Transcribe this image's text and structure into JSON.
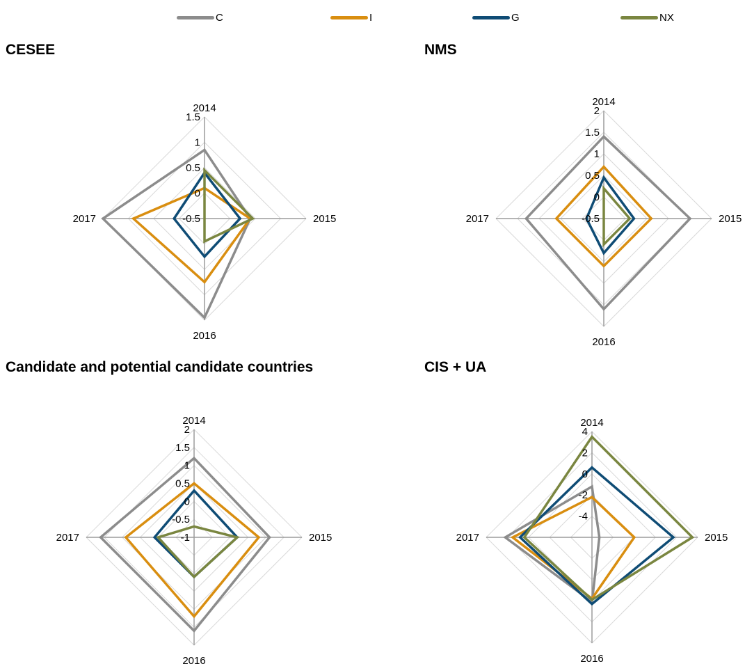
{
  "legend": [
    {
      "name": "C",
      "color": "#8c8c8c"
    },
    {
      "name": "I",
      "color": "#d98e10"
    },
    {
      "name": "G",
      "color": "#0f4c75"
    },
    {
      "name": "NX",
      "color": "#7a8640"
    }
  ],
  "chart_data": [
    {
      "type": "radar",
      "title": "CESEE",
      "categories": [
        "2014",
        "2015",
        "2016",
        "2017"
      ],
      "rmin": -0.5,
      "rmax": 1.5,
      "ticks": [
        "-0.5",
        "0",
        "0.5",
        "1",
        "1.5"
      ],
      "grid": true,
      "series": [
        {
          "name": "C",
          "values": [
            0.85,
            0.4,
            1.45,
            1.5
          ]
        },
        {
          "name": "I",
          "values": [
            0.1,
            0.4,
            0.75,
            0.9
          ]
        },
        {
          "name": "G",
          "values": [
            0.4,
            0.2,
            0.25,
            0.1
          ]
        },
        {
          "name": "NX",
          "values": [
            0.45,
            0.45,
            -0.05,
            -0.5
          ]
        }
      ]
    },
    {
      "type": "radar",
      "title": "NMS",
      "categories": [
        "2014",
        "2015",
        "2016",
        "2017"
      ],
      "rmin": -0.5,
      "rmax": 2,
      "ticks": [
        "-0.5",
        "0",
        "0.5",
        "1",
        "1.5",
        "2"
      ],
      "grid": true,
      "series": [
        {
          "name": "C",
          "values": [
            1.4,
            1.5,
            1.6,
            1.3
          ]
        },
        {
          "name": "I",
          "values": [
            0.7,
            0.6,
            0.6,
            0.6
          ]
        },
        {
          "name": "G",
          "values": [
            0.45,
            0.2,
            0.3,
            -0.1
          ]
        },
        {
          "name": "NX",
          "values": [
            0.2,
            0.1,
            0.1,
            -0.5
          ]
        }
      ]
    },
    {
      "type": "radar",
      "title": "Candidate and potential candidate countries",
      "categories": [
        "2014",
        "2015",
        "2016",
        "2017"
      ],
      "rmin": -1,
      "rmax": 2,
      "ticks": [
        "-1",
        "-0.5",
        "0",
        "0.5",
        "1",
        "1.5",
        "2"
      ],
      "grid": true,
      "series": [
        {
          "name": "C",
          "values": [
            1.2,
            1.1,
            1.6,
            1.6
          ]
        },
        {
          "name": "I",
          "values": [
            0.5,
            0.8,
            1.2,
            0.9
          ]
        },
        {
          "name": "G",
          "values": [
            0.3,
            0.2,
            0.1,
            0.1
          ]
        },
        {
          "name": "NX",
          "values": [
            -0.7,
            0.2,
            0.1,
            0.0
          ]
        }
      ]
    },
    {
      "type": "radar",
      "title": "CIS + UA",
      "categories": [
        "2014",
        "2015",
        "2016",
        "2017"
      ],
      "rmin": -6,
      "rmax": 4,
      "ticks": [
        "-4",
        "-2",
        "0",
        "2",
        "4"
      ],
      "grid": true,
      "series": [
        {
          "name": "C",
          "values": [
            -1.2,
            -5.3,
            0.1,
            2.2
          ]
        },
        {
          "name": "I",
          "values": [
            -2.2,
            -2.0,
            -0.2,
            1.5
          ]
        },
        {
          "name": "G",
          "values": [
            0.6,
            1.7,
            0.3,
            0.8
          ]
        },
        {
          "name": "NX",
          "values": [
            3.5,
            3.5,
            -0.1,
            0.4
          ]
        }
      ]
    }
  ]
}
